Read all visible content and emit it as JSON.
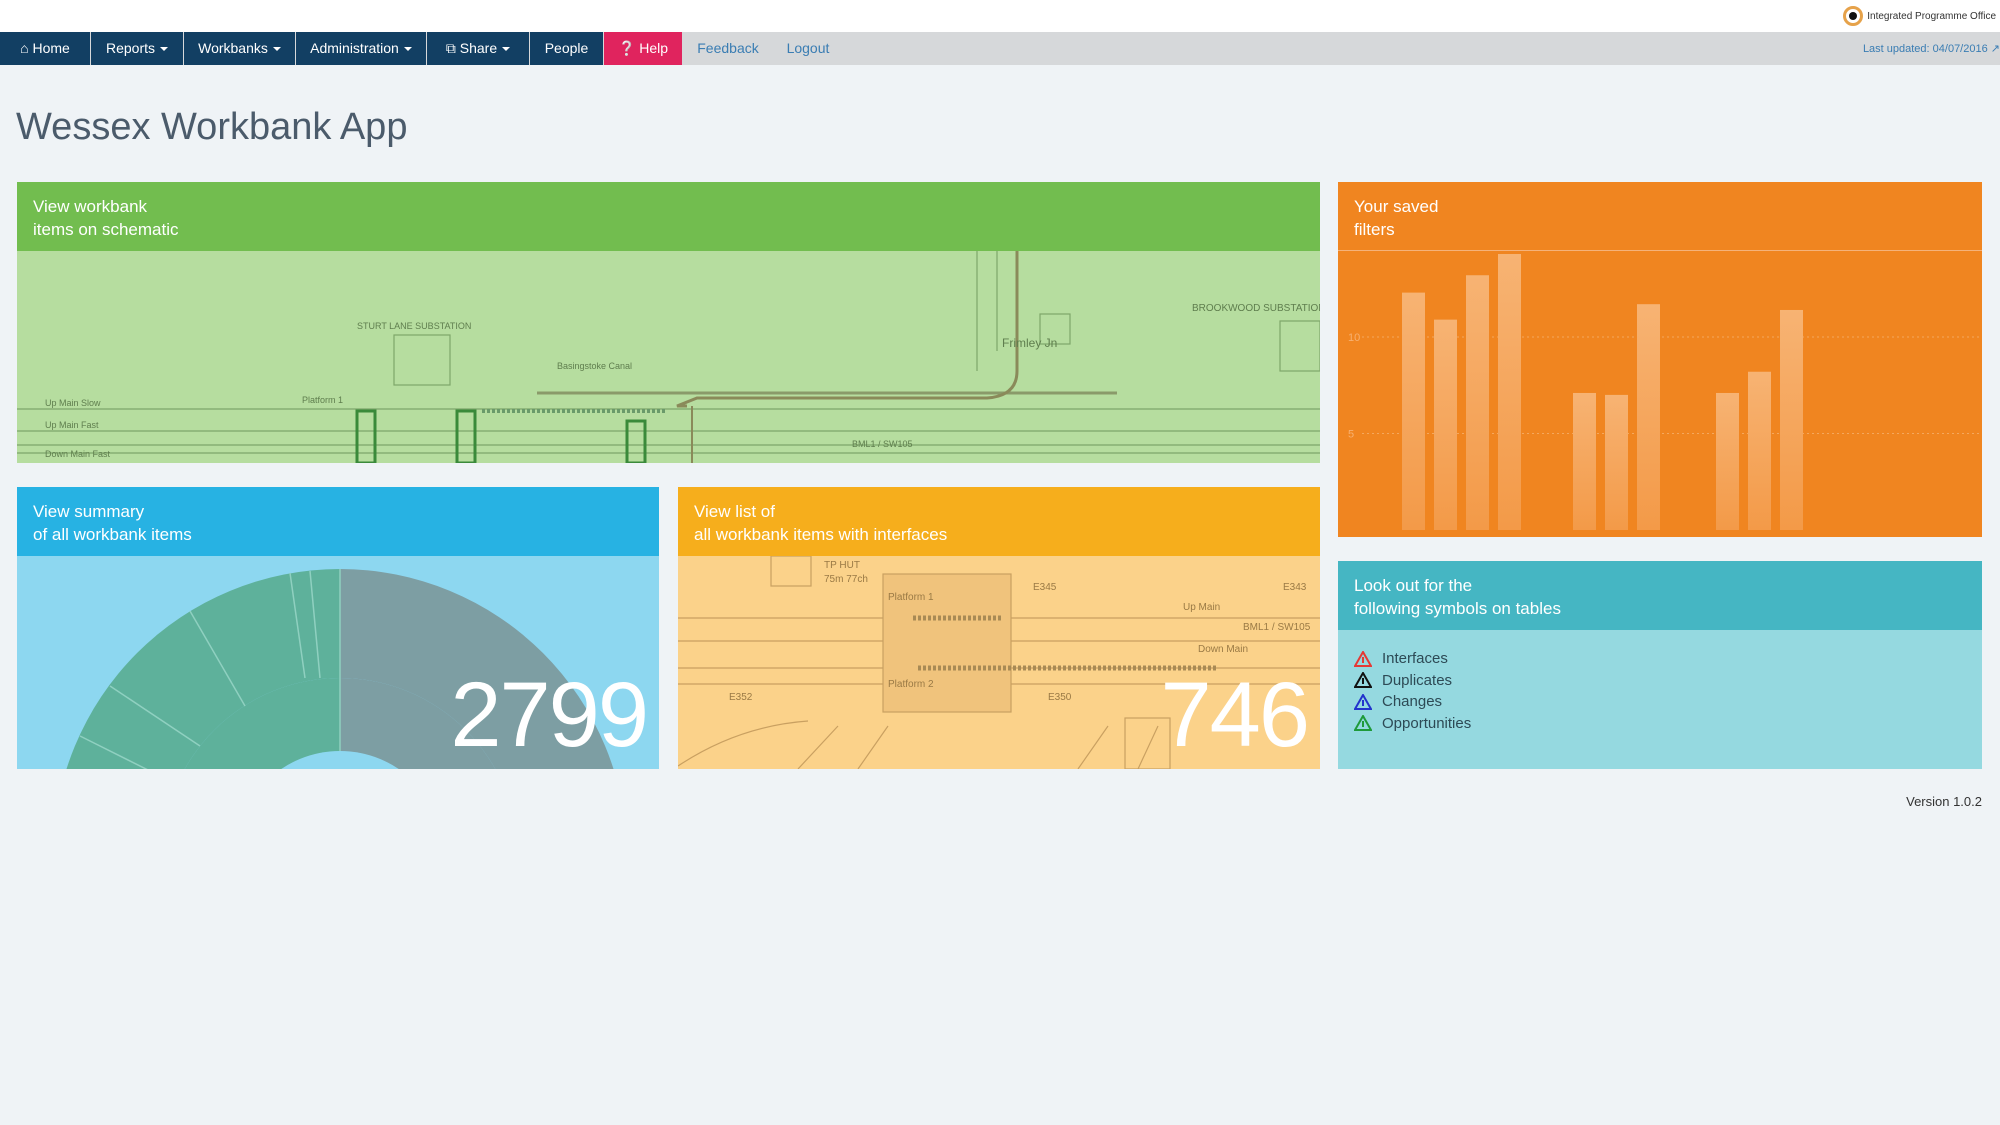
{
  "brand": {
    "name": "Integrated Programme Office"
  },
  "nav": {
    "items": [
      {
        "label": "Home",
        "icon": "home-icon"
      },
      {
        "label": "Reports",
        "dropdown": true
      },
      {
        "label": "Workbanks",
        "dropdown": true
      },
      {
        "label": "Administration",
        "dropdown": true
      },
      {
        "label": "Share",
        "icon": "share-icon",
        "dropdown": true
      },
      {
        "label": "People"
      },
      {
        "label": "Help",
        "icon": "question-circle-icon"
      },
      {
        "label": "Feedback"
      },
      {
        "label": "Logout"
      }
    ],
    "last_updated": "Last updated: 04/07/2016"
  },
  "page": {
    "title": "Wessex Workbank App",
    "version": "Version 1.0.2"
  },
  "tiles": {
    "schematic": {
      "line1": "View workbank",
      "line2": "items on schematic",
      "color": "#72bd4f",
      "labels": [
        "Frimley Jn",
        "Up Main Slow",
        "Up Main Fast",
        "Down Main Fast",
        "Platform 1",
        "BML1 / SW105",
        "STURT LANE SUBSTATION",
        "Basingstoke Canal",
        "BROOKWOOD SUBSTATION"
      ]
    },
    "filters": {
      "line1": "Your saved",
      "line2": "filters",
      "color": "#f08520"
    },
    "summary": {
      "line1": "View summary",
      "line2": "of all workbank items",
      "count": "2799",
      "color": "#27b2e3"
    },
    "interfaces": {
      "line1": "View list of",
      "line2": "all workbank items with interfaces",
      "count": "746",
      "color": "#f6ae1c",
      "labels": [
        "TP HUT",
        "75m 77ch",
        "Platform 1",
        "Platform 2",
        "E345",
        "E343",
        "E352",
        "E350",
        "Up Main",
        "Down Main",
        "BML1 / SW105"
      ]
    },
    "symbols": {
      "line1": "Look out for the",
      "line2": "following symbols on tables",
      "color": "#45b6c3",
      "items": [
        {
          "label": "Interfaces",
          "color": "#e53935"
        },
        {
          "label": "Duplicates",
          "color": "#111111"
        },
        {
          "label": "Changes",
          "color": "#2233cc"
        },
        {
          "label": "Opportunities",
          "color": "#1f9a3a"
        }
      ]
    }
  },
  "chart_data": {
    "type": "bar",
    "title": "",
    "xlabel": "",
    "ylabel": "",
    "ylim": [
      0,
      15
    ],
    "yticks": [
      "5",
      "10"
    ],
    "grid": true,
    "groups": [
      [
        12.3,
        10.9,
        13.2,
        14.3
      ],
      [
        7.1,
        7.0,
        11.7
      ],
      [
        7.1,
        8.2,
        11.4
      ]
    ]
  }
}
